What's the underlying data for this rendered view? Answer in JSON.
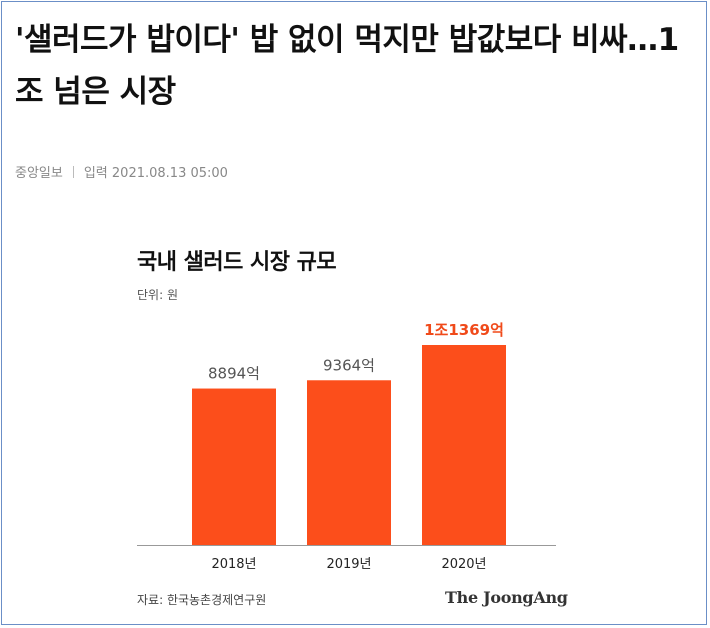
{
  "article": {
    "headline": "'샐러드가 밥이다' 밥 없이 먹지만 밥값보다 비싸…1조 넘은 시장",
    "source_name": "중앙일보",
    "date_label": "입력",
    "date": "2021.08.13 05:00"
  },
  "chart_data": {
    "type": "bar",
    "title": "국내 샐러드 시장 규모",
    "unit": "단위: 원",
    "categories": [
      "2018년",
      "2019년",
      "2020년"
    ],
    "values": [
      8894,
      9364,
      11369
    ],
    "value_labels": [
      "8894억",
      "9364억",
      "1조1369억"
    ],
    "highlight_index": 2,
    "ylim": [
      0,
      11369
    ],
    "grid": false,
    "bar_color": "#fc4e1b",
    "label_color": "#555555",
    "highlight_label_color": "#f04a1a",
    "axis_color": "#999999",
    "source": "자료: 한국농촌경제연구원",
    "publisher_logo": "The JoongAng"
  }
}
